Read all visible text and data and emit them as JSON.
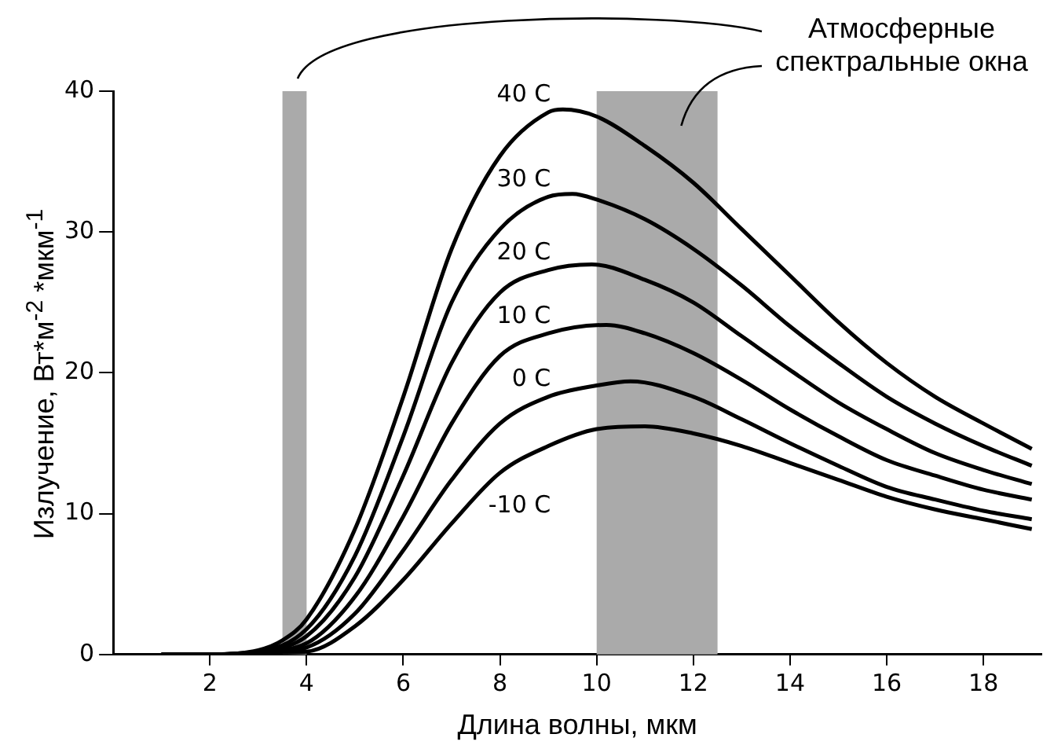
{
  "chart_data": {
    "type": "line",
    "xlabel": "Длина волны, мкм",
    "ylabel": "Излучение, Вт*м$^{-2}$ *мкм$^{-1}$",
    "xlim": [
      0,
      19.2
    ],
    "xticks": [
      2,
      4,
      6,
      8,
      10,
      12,
      14,
      16,
      18
    ],
    "ylim": [
      0,
      40
    ],
    "yticks": [
      0,
      10,
      20,
      30,
      40
    ],
    "grid": false,
    "legend": false,
    "marker": "none",
    "line_style": "solid",
    "annotations": [
      "Атмосферные спектральные окна"
    ],
    "bands": [
      {
        "axis": "x",
        "from": 3.5,
        "to": 4,
        "color": "#aaaaaa"
      },
      {
        "axis": "x",
        "from": 10,
        "to": 12.5,
        "color": "#aaaaaa"
      }
    ],
    "series": [
      {
        "name": "-10 C",
        "color": "#000000",
        "x": [
          1,
          2,
          3,
          4,
          5,
          6,
          7,
          8,
          9,
          10,
          11,
          12,
          13,
          14,
          15,
          16,
          17,
          18,
          19
        ],
        "values": [
          0,
          0,
          0.1,
          0.2,
          2.0,
          5.3,
          9.3,
          12.9,
          14.8,
          16.0,
          16.2,
          15.7,
          14.8,
          13.6,
          12.4,
          11.2,
          10.3,
          9.6,
          8.9
        ]
      },
      {
        "name": "0 C",
        "color": "#000000",
        "x": [
          1,
          2,
          3,
          4,
          5,
          6,
          7,
          8,
          9,
          10,
          10.7,
          12,
          13,
          14,
          15,
          16,
          17,
          18,
          19
        ],
        "values": [
          0,
          0,
          0.1,
          0.5,
          2.9,
          7.4,
          12.4,
          16.4,
          18.3,
          19.1,
          19.4,
          18.3,
          16.7,
          15.0,
          13.4,
          11.9,
          11.0,
          10.2,
          9.6
        ]
      },
      {
        "name": "10 C",
        "color": "#000000",
        "x": [
          1,
          2,
          3,
          4,
          5,
          6,
          7,
          8,
          9,
          10.2,
          11,
          12,
          13,
          14,
          15,
          16,
          17,
          18,
          19
        ],
        "values": [
          0,
          0,
          0.2,
          0.8,
          4.1,
          9.8,
          16.4,
          21.2,
          22.8,
          23.4,
          22.8,
          21.4,
          19.5,
          17.4,
          15.5,
          13.8,
          12.7,
          11.7,
          11.0
        ]
      },
      {
        "name": "20 C",
        "color": "#000000",
        "x": [
          1,
          2,
          3,
          4,
          5,
          6,
          7,
          8,
          9,
          9.9,
          11,
          12,
          13,
          14,
          15,
          16,
          17,
          18,
          19
        ],
        "values": [
          0,
          0,
          0.2,
          1.3,
          5.5,
          12.7,
          20.7,
          25.7,
          27.3,
          27.7,
          26.6,
          25.0,
          22.6,
          20.2,
          17.9,
          16.0,
          14.3,
          13.1,
          12.1
        ]
      },
      {
        "name": "30 C",
        "color": "#000000",
        "x": [
          1,
          2,
          3,
          4,
          5,
          6,
          7,
          8,
          9,
          9.5,
          10,
          11,
          12,
          13,
          14,
          15,
          16,
          17,
          18,
          19
        ],
        "values": [
          0,
          0,
          0.2,
          1.8,
          7.0,
          15.5,
          25.0,
          30.2,
          32.5,
          32.7,
          32.3,
          30.9,
          28.8,
          26.2,
          23.3,
          20.7,
          18.3,
          16.4,
          14.8,
          13.4
        ]
      },
      {
        "name": "40 C",
        "color": "#000000",
        "x": [
          1,
          2,
          3,
          3.5,
          4,
          5,
          6,
          7,
          8,
          9,
          9.3,
          10,
          11,
          12,
          13,
          14,
          15,
          16,
          17,
          18,
          19
        ],
        "values": [
          0,
          0,
          0.3,
          1.0,
          2.5,
          8.9,
          18.3,
          28.8,
          35.4,
          38.5,
          38.7,
          38.2,
          36.1,
          33.5,
          30.2,
          26.9,
          23.6,
          20.7,
          18.3,
          16.4,
          14.6
        ]
      }
    ]
  }
}
